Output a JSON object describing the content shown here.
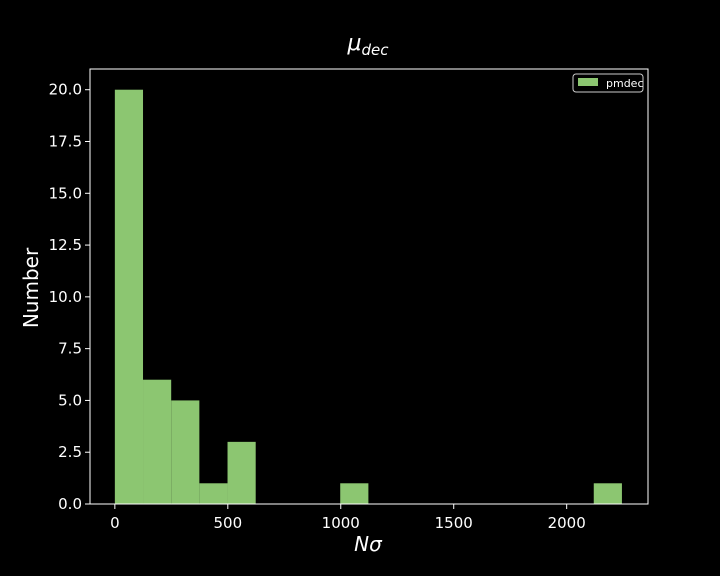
{
  "chart_data": {
    "type": "bar",
    "title_symbol": "μ",
    "title_subscript": "dec",
    "xlabel_symbol_n": "N",
    "xlabel_symbol_sigma": "σ",
    "ylabel": "Number",
    "legend": {
      "placement": "top-right",
      "entries": [
        "pmdec"
      ]
    },
    "xlim": [
      -110,
      2360
    ],
    "ylim": [
      0,
      21
    ],
    "xticks": [
      0,
      500,
      1000,
      1500,
      2000
    ],
    "yticks": [
      0.0,
      2.5,
      5.0,
      7.5,
      10.0,
      12.5,
      15.0,
      17.5,
      20.0
    ],
    "xtick_labels": [
      "0",
      "500",
      "1000",
      "1500",
      "2000"
    ],
    "ytick_labels": [
      "0.0",
      "2.5",
      "5.0",
      "7.5",
      "10.0",
      "12.5",
      "15.0",
      "17.5",
      "20.0"
    ],
    "bin_edges": [
      0,
      124.7,
      249.4,
      374.1,
      498.8,
      623.5,
      748.2,
      872.9,
      997.6,
      1122.3,
      1247.0,
      1371.7,
      1496.4,
      1621.1,
      1745.8,
      1870.5,
      1995.2,
      2119.9,
      2244.6
    ],
    "series": [
      {
        "name": "pmdec",
        "color": "#8cc671",
        "values": [
          20,
          6,
          5,
          1,
          3,
          0,
          0,
          0,
          1,
          0,
          0,
          0,
          0,
          0,
          0,
          0,
          0,
          1
        ]
      }
    ],
    "background": "#000000",
    "foreground": "#ffffff",
    "grid": false
  }
}
